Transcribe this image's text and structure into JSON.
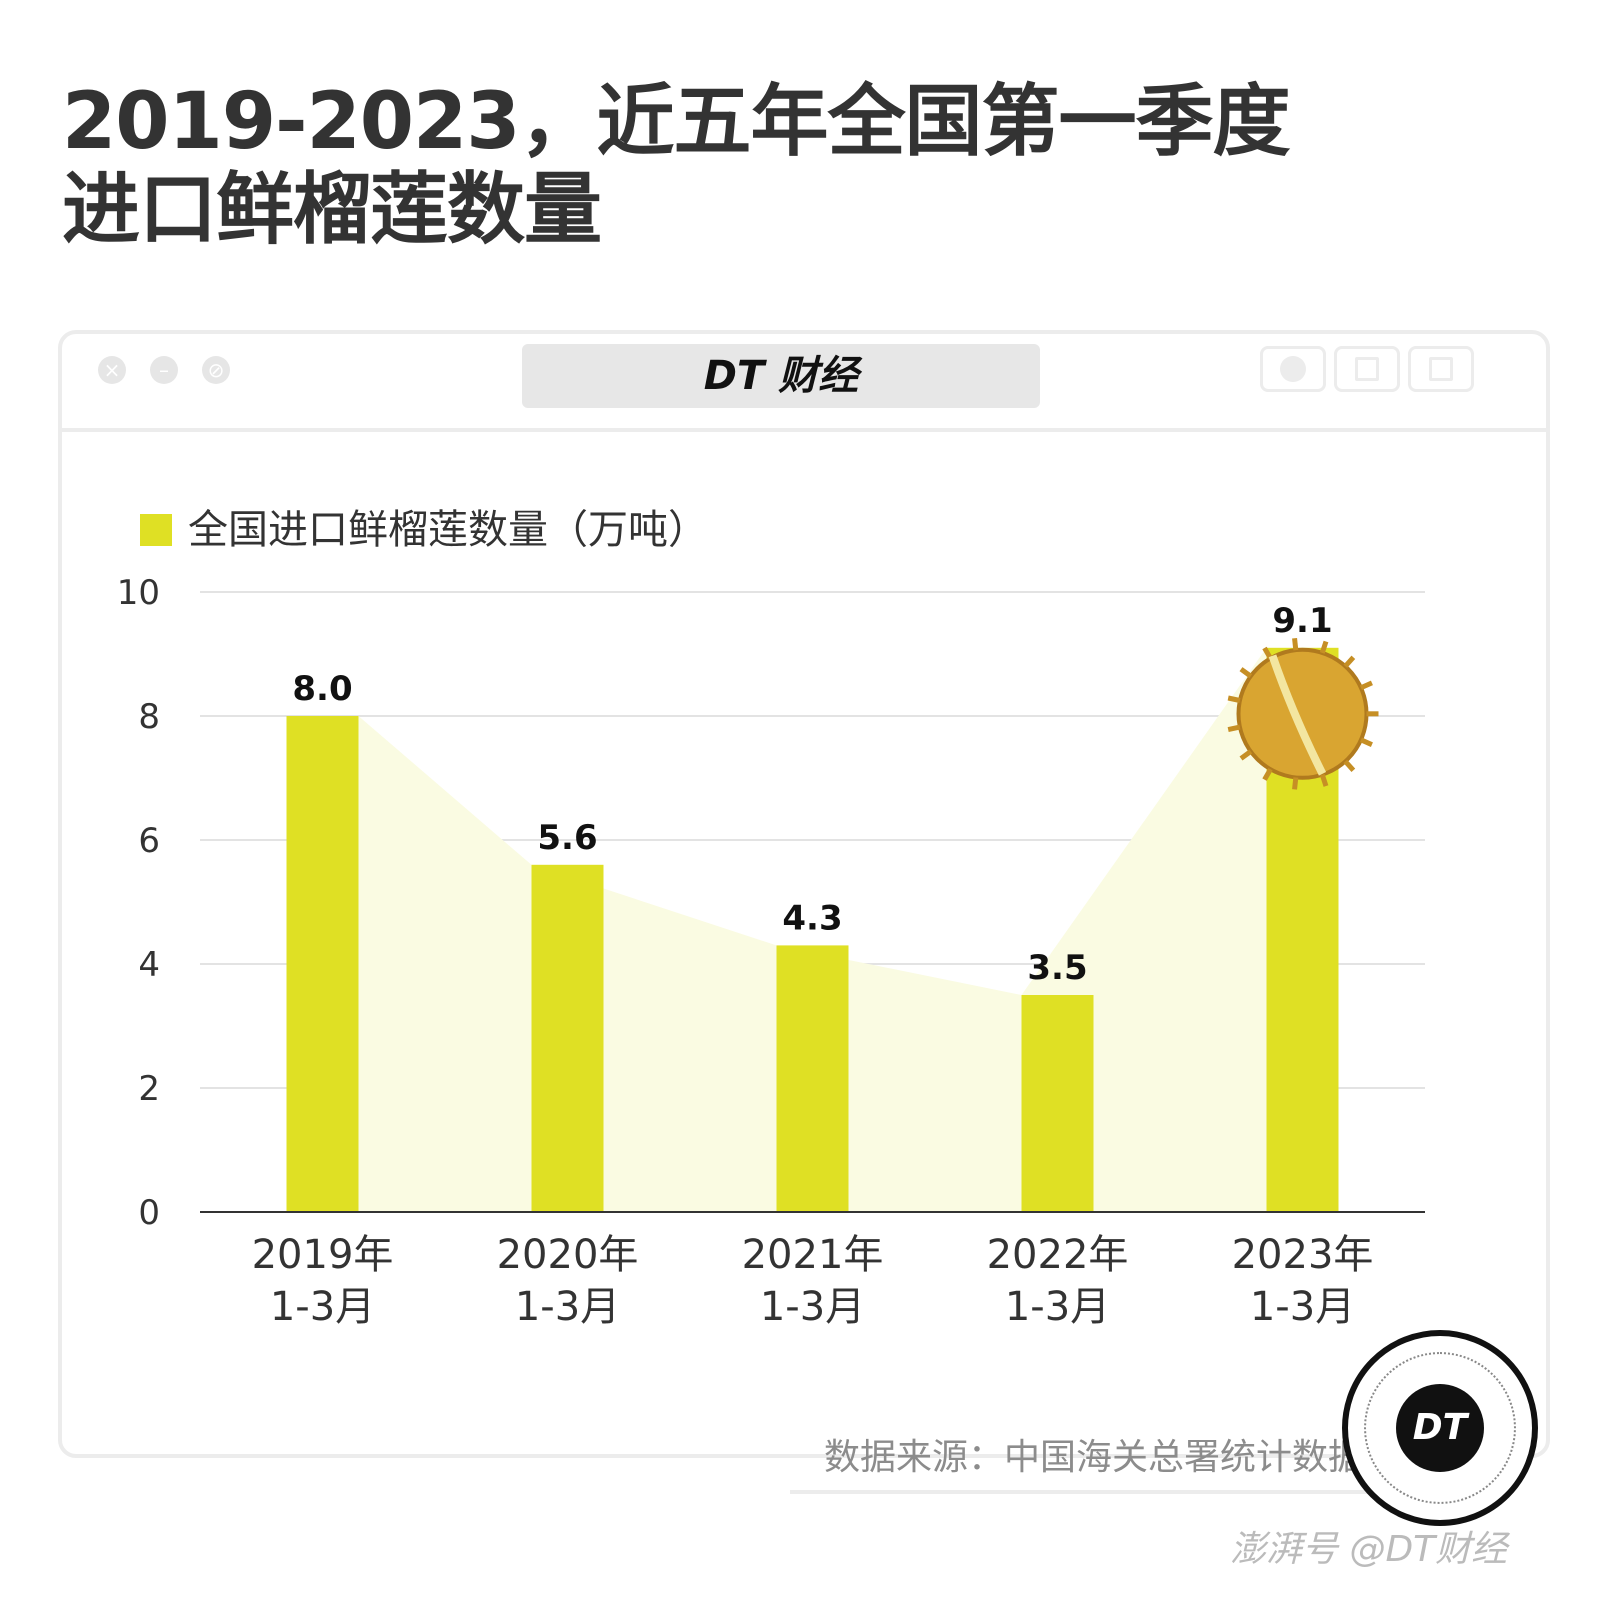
{
  "title": {
    "line1": "2019-2023，近五年全国第一季度",
    "line2": "进口鲜榴莲数量"
  },
  "window": {
    "brand": "DT 财经",
    "buttons": [
      "close-icon",
      "minimize-icon",
      "block-icon"
    ],
    "tools": [
      "record-icon",
      "share-icon",
      "duplicate-icon"
    ]
  },
  "colors": {
    "bar": "#dfe024",
    "area": "#fafbe2",
    "text": "#333333",
    "grid": "#e3e3e3"
  },
  "chart_data": {
    "type": "bar",
    "legend": "全国进口鲜榴莲数量（万吨）",
    "categories": [
      [
        "2019年",
        "1-3月"
      ],
      [
        "2020年",
        "1-3月"
      ],
      [
        "2021年",
        "1-3月"
      ],
      [
        "2022年",
        "1-3月"
      ],
      [
        "2023年",
        "1-3月"
      ]
    ],
    "values": [
      8.0,
      5.6,
      4.3,
      3.5,
      9.1
    ],
    "value_labels": [
      "8.0",
      "5.6",
      "4.3",
      "3.5",
      "9.1"
    ],
    "ylim": [
      0,
      10
    ],
    "yticks": [
      0,
      2,
      4,
      6,
      8,
      10
    ],
    "grid": true,
    "legend_position": "top-left"
  },
  "source": "数据来源：中国海关总署统计数据",
  "badge": "DT",
  "watermark": "澎湃号 @DT财经"
}
